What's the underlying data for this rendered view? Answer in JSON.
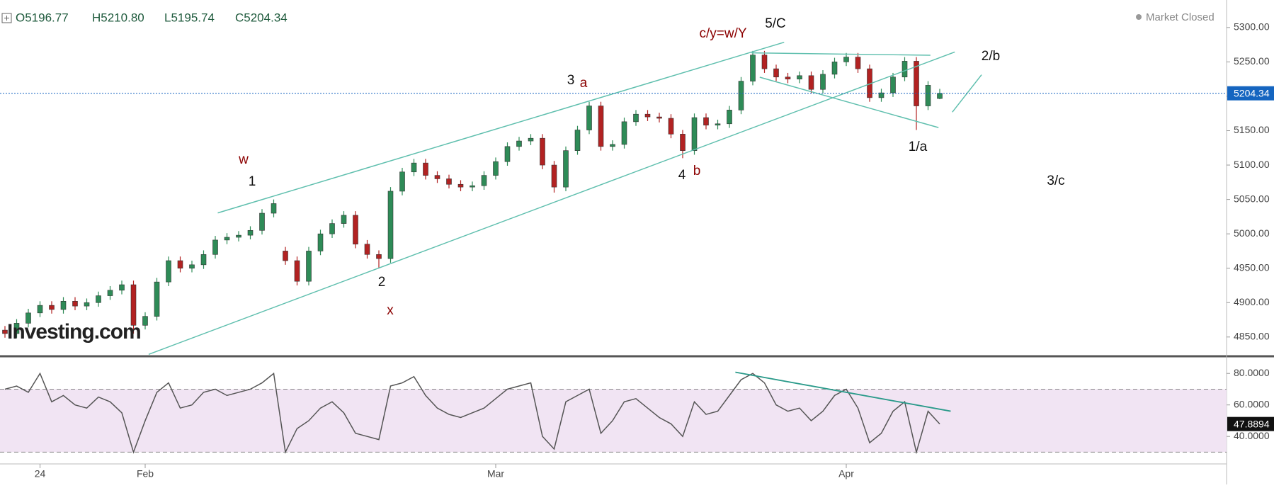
{
  "header": [
    "O5196.77",
    "H5210.80",
    "L5195.74",
    "C5204.34"
  ],
  "status": "Market Closed",
  "watermark": "Investing.com",
  "chart_data": [
    {
      "type": "candlestick",
      "up_color": "#2e8b57",
      "down_color": "#b22222",
      "open": [
        4860,
        4855,
        4870,
        4885,
        4896,
        4890,
        4902,
        4895,
        4900,
        4910,
        4918,
        4926,
        4867,
        4880,
        4930,
        4961,
        4950,
        4955,
        4970,
        4991,
        4995,
        4998,
        5005,
        5030,
        4975,
        4961,
        4931,
        4975,
        5000,
        5015,
        5027,
        4985,
        4970,
        4964,
        5062,
        5090,
        5103,
        5085,
        5080,
        5072,
        5068,
        5070,
        5085,
        5105,
        5127,
        5135,
        5139,
        5100,
        5068,
        5121,
        5151,
        5186,
        5127,
        5130,
        5163,
        5174,
        5170,
        5168,
        5145,
        5121,
        5169,
        5158,
        5160,
        5180,
        5222,
        5260,
        5240,
        5228,
        5225,
        5230,
        5210,
        5232,
        5250,
        5257,
        5240,
        5198,
        5205,
        5228,
        5251,
        5186,
        5196.77
      ],
      "high": [
        4866,
        4876,
        4891,
        4902,
        4902,
        4908,
        4908,
        4906,
        4916,
        4924,
        4932,
        4932,
        4886,
        4936,
        4967,
        4967,
        4961,
        4976,
        4997,
        5001,
        5004,
        5011,
        5036,
        5050,
        4981,
        4967,
        4981,
        5006,
        5021,
        5033,
        5033,
        4991,
        4976,
        5068,
        5096,
        5109,
        5109,
        5091,
        5086,
        5078,
        5076,
        5091,
        5111,
        5133,
        5141,
        5145,
        5145,
        5106,
        5127,
        5157,
        5192,
        5192,
        5136,
        5169,
        5180,
        5180,
        5176,
        5174,
        5151,
        5175,
        5175,
        5166,
        5186,
        5228,
        5266,
        5266,
        5246,
        5234,
        5236,
        5236,
        5238,
        5256,
        5263,
        5263,
        5246,
        5211,
        5234,
        5257,
        5257,
        5222,
        5210.8
      ],
      "low": [
        4849,
        4849,
        4864,
        4879,
        4884,
        4884,
        4889,
        4889,
        4894,
        4904,
        4912,
        4855,
        4861,
        4874,
        4924,
        4944,
        4944,
        4949,
        4964,
        4985,
        4989,
        4992,
        4999,
        5024,
        4955,
        4925,
        4925,
        4969,
        4994,
        5009,
        4979,
        4964,
        4950,
        4958,
        5056,
        5084,
        5079,
        5074,
        5066,
        5062,
        5062,
        5064,
        5079,
        5099,
        5121,
        5129,
        5094,
        5060,
        5062,
        5115,
        5145,
        5121,
        5121,
        5124,
        5157,
        5164,
        5162,
        5139,
        5110,
        5115,
        5152,
        5152,
        5154,
        5174,
        5216,
        5234,
        5222,
        5219,
        5219,
        5204,
        5204,
        5226,
        5244,
        5234,
        5192,
        5192,
        5199,
        5222,
        5151,
        5180,
        5195.74
      ],
      "close": [
        4855,
        4870,
        4885,
        4896,
        4890,
        4902,
        4895,
        4900,
        4910,
        4918,
        4926,
        4867,
        4880,
        4930,
        4961,
        4950,
        4955,
        4970,
        4991,
        4995,
        4998,
        5005,
        5030,
        5044,
        4961,
        4931,
        4975,
        5000,
        5015,
        5027,
        4985,
        4970,
        4964,
        5062,
        5090,
        5103,
        5085,
        5080,
        5072,
        5068,
        5070,
        5085,
        5105,
        5127,
        5135,
        5139,
        5100,
        5068,
        5121,
        5151,
        5186,
        5127,
        5130,
        5163,
        5174,
        5170,
        5168,
        5145,
        5121,
        5169,
        5158,
        5160,
        5180,
        5222,
        5260,
        5240,
        5228,
        5225,
        5230,
        5210,
        5232,
        5250,
        5257,
        5240,
        5198,
        5205,
        5228,
        5251,
        5186,
        5216,
        5204.34
      ],
      "last_price": 5204.34,
      "last_price_color": "#1565c0",
      "ylim": [
        4822,
        5340
      ],
      "yticks": [
        {
          "value": 4850,
          "label": "4850.00"
        },
        {
          "value": 4900,
          "label": "4900.00"
        },
        {
          "value": 4950,
          "label": "4950.00"
        },
        {
          "value": 5000,
          "label": "5000.00"
        },
        {
          "value": 5050,
          "label": "5050.00"
        },
        {
          "value": 5100,
          "label": "5100.00"
        },
        {
          "value": 5150,
          "label": "5150.00"
        },
        {
          "value": 5200,
          "label": "5200.00"
        },
        {
          "value": 5250,
          "label": "5250.00"
        },
        {
          "value": 5300,
          "label": "5300.00"
        }
      ],
      "annotations": [
        {
          "text": "c/y=w/Y",
          "color": "#8b0000"
        },
        {
          "text": "5/C",
          "color": "#111111"
        },
        {
          "text": "2/b",
          "color": "#111111"
        },
        {
          "text": "w",
          "color": "#8b0000"
        },
        {
          "text": "1",
          "color": "#111111"
        },
        {
          "text": "3",
          "color": "#111111"
        },
        {
          "text": "a",
          "color": "#8b0000"
        },
        {
          "text": "4",
          "color": "#111111"
        },
        {
          "text": "b",
          "color": "#8b0000"
        },
        {
          "text": "2",
          "color": "#111111"
        },
        {
          "text": "x",
          "color": "#8b0000"
        },
        {
          "text": "1/a",
          "color": "#111111"
        },
        {
          "text": "3/c",
          "color": "#111111"
        }
      ]
    },
    {
      "type": "line",
      "categories": [
        null,
        null,
        null,
        "24",
        null,
        null,
        null,
        null,
        null,
        null,
        null,
        null,
        "Feb",
        null,
        null,
        null,
        null,
        null,
        null,
        null,
        null,
        null,
        null,
        null,
        null,
        null,
        null,
        null,
        null,
        null,
        null,
        null,
        null,
        null,
        null,
        null,
        null,
        null,
        null,
        null,
        null,
        null,
        "Mar",
        null,
        null,
        null,
        null,
        null,
        null,
        null,
        null,
        null,
        null,
        null,
        null,
        null,
        null,
        null,
        null,
        null,
        null,
        null,
        null,
        null,
        null,
        null,
        null,
        null,
        null,
        null,
        null,
        null,
        "Apr",
        null,
        null,
        null,
        null,
        null,
        null,
        null,
        null
      ],
      "series": [
        {
          "color": "#555555",
          "values": [
            70,
            72,
            68,
            80,
            62,
            66,
            60,
            58,
            65,
            62,
            55,
            30,
            50,
            68,
            74,
            58,
            60,
            68,
            70,
            66,
            68,
            70,
            74,
            80,
            30,
            45,
            50,
            58,
            62,
            55,
            42,
            40,
            38,
            72,
            74,
            78,
            66,
            58,
            54,
            52,
            55,
            58,
            64,
            70,
            72,
            74,
            40,
            32,
            62,
            66,
            70,
            42,
            50,
            62,
            64,
            58,
            52,
            48,
            40,
            62,
            54,
            56,
            66,
            76,
            80,
            74,
            60,
            56,
            58,
            50,
            56,
            66,
            70,
            58,
            36,
            42,
            56,
            62,
            30,
            56,
            47.8894
          ]
        }
      ],
      "band": [
        30,
        70
      ],
      "band_color": "#f1e4f3",
      "ylim": [
        23,
        90
      ],
      "yticks": [
        {
          "value": 40,
          "label": "40.0000"
        },
        {
          "value": 60,
          "label": "60.0000"
        },
        {
          "value": 80,
          "label": "80.0000"
        }
      ]
    }
  ]
}
